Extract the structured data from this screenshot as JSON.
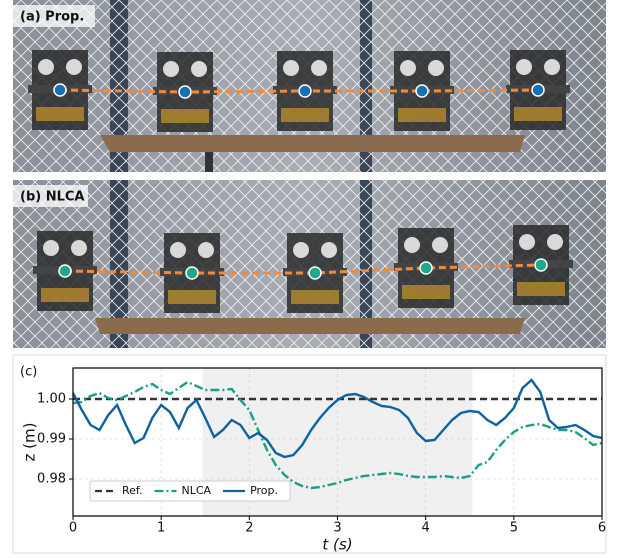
{
  "panels": {
    "a": {
      "label": "(a) Prop."
    },
    "b": {
      "label": "(b) NLCA"
    }
  },
  "chart_data": {
    "type": "line",
    "panel_label": "(c)",
    "xlabel": "t (s)",
    "ylabel": "z (m)",
    "xlim": [
      0,
      6
    ],
    "xticks": [
      0,
      1,
      2,
      3,
      4,
      5,
      6
    ],
    "ylim": [
      0.97075,
      1.00775
    ],
    "yticks": [
      0.98,
      0.99,
      {
        "value": 1,
        "label": "1.00"
      }
    ],
    "grid": true,
    "legend": "lower left",
    "shaded_x": [
      1.47,
      4.53
    ],
    "series": [
      {
        "name": "Ref.",
        "color": "#333333",
        "dash": "dashed",
        "x": [
          0,
          6
        ],
        "values": [
          1,
          1
        ]
      },
      {
        "name": "NLCA",
        "color": "#1a9e86",
        "dash": "dashdot",
        "x": [
          0,
          0.1,
          0.2,
          0.3,
          0.4,
          0.5,
          0.6,
          0.7,
          0.8,
          0.9,
          1,
          1.1,
          1.2,
          1.3,
          1.4,
          1.5,
          1.6,
          1.7,
          1.8,
          1.9,
          2,
          2.1,
          2.2,
          2.3,
          2.4,
          2.5,
          2.6,
          2.7,
          2.8,
          2.9,
          3,
          3.1,
          3.2,
          3.3,
          3.4,
          3.5,
          3.6,
          3.7,
          3.8,
          3.9,
          4,
          4.1,
          4.2,
          4.3,
          4.4,
          4.5,
          4.6,
          4.7,
          4.8,
          4.9,
          5,
          5.1,
          5.2,
          5.3,
          5.4,
          5.5,
          5.6,
          5.7,
          5.8,
          5.9,
          6
        ],
        "values": [
          0.999,
          0.99925,
          1.00075,
          1.0015,
          1.00025,
          0.99975,
          1.00075,
          1.00175,
          1.003,
          1.00375,
          1.00225,
          1.00125,
          1.00275,
          1.00425,
          1.00325,
          1.00225,
          1.00225,
          1.00225,
          1.0025,
          0.99975,
          0.99725,
          0.99225,
          0.98725,
          0.9835,
          0.981,
          0.97925,
          0.97825,
          0.97775,
          0.978,
          0.9785,
          0.979,
          0.97975,
          0.98025,
          0.98075,
          0.981,
          0.98125,
          0.9815,
          0.98125,
          0.98075,
          0.9805,
          0.9805,
          0.9805,
          0.98075,
          0.9805,
          0.98025,
          0.98075,
          0.9835,
          0.98425,
          0.98725,
          0.98975,
          0.99175,
          0.993,
          0.9935,
          0.99375,
          0.993,
          0.99225,
          0.99225,
          0.99175,
          0.99025,
          0.9885,
          0.989
        ]
      },
      {
        "name": "Prop.",
        "color": "#0e62a0",
        "dash": "solid",
        "x": [
          0,
          0.1,
          0.2,
          0.3,
          0.4,
          0.5,
          0.6,
          0.7,
          0.8,
          0.9,
          1,
          1.1,
          1.2,
          1.3,
          1.4,
          1.5,
          1.6,
          1.7,
          1.8,
          1.9,
          2,
          2.1,
          2.2,
          2.3,
          2.4,
          2.5,
          2.6,
          2.7,
          2.8,
          2.9,
          3,
          3.1,
          3.2,
          3.3,
          3.4,
          3.5,
          3.6,
          3.7,
          3.8,
          3.9,
          4,
          4.1,
          4.2,
          4.3,
          4.4,
          4.5,
          4.6,
          4.7,
          4.8,
          4.9,
          5,
          5.1,
          5.2,
          5.3,
          5.4,
          5.5,
          5.6,
          5.7,
          5.8,
          5.9,
          6
        ],
        "values": [
          1.0015,
          0.99725,
          0.9935,
          0.99225,
          0.996,
          0.9985,
          0.9935,
          0.989,
          0.99025,
          0.99525,
          0.9985,
          0.99675,
          0.99275,
          0.99775,
          0.99975,
          0.99525,
          0.9905,
          0.99225,
          0.99475,
          0.9935,
          0.99025,
          0.9915,
          0.98975,
          0.9865,
          0.9855,
          0.986,
          0.9885,
          0.99225,
          0.99525,
          0.99775,
          0.99975,
          1.001,
          1.00125,
          1.0005,
          0.99925,
          0.99825,
          0.998,
          0.99725,
          0.99525,
          0.9915,
          0.9895,
          0.98975,
          0.99225,
          0.99475,
          0.9965,
          0.997,
          0.99675,
          0.99475,
          0.9935,
          0.99525,
          0.99775,
          1.00275,
          1.00475,
          1.00175,
          0.99475,
          0.99275,
          0.993,
          0.9935,
          0.99225,
          0.99075,
          0.99025
        ]
      }
    ]
  }
}
